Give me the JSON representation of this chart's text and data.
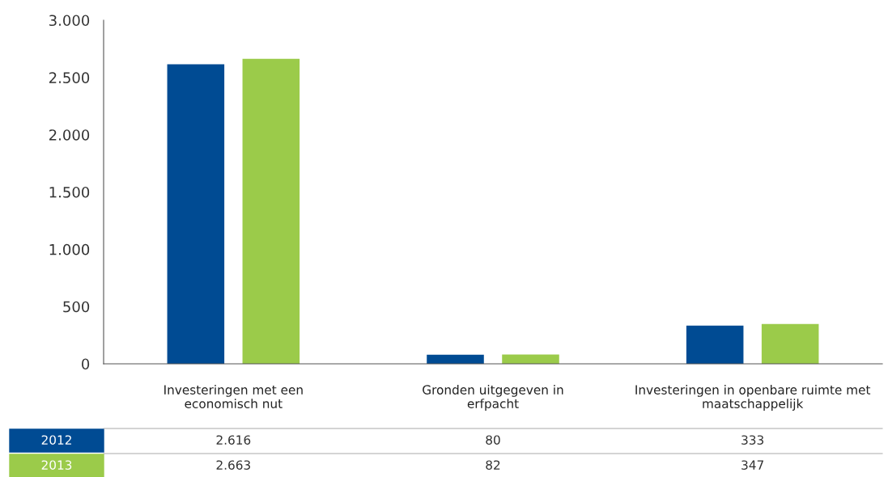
{
  "chart_data": {
    "type": "bar",
    "categories": [
      "Investeringen met een\neconomisch nut",
      "Gronden uitgegeven in\nerfpacht",
      "Investeringen in openbare ruimte met\nmaatschappelijk"
    ],
    "series": [
      {
        "name": "2012",
        "color": "#004b93",
        "values": [
          2616,
          80,
          333
        ],
        "value_labels": [
          "2.616",
          "80",
          "333"
        ]
      },
      {
        "name": "2013",
        "color": "#9bcb4a",
        "values": [
          2663,
          82,
          347
        ],
        "value_labels": [
          "2.663",
          "82",
          "347"
        ]
      }
    ],
    "ylim": [
      0,
      3000
    ],
    "yticks": [
      0,
      500,
      {
        "value": 1000,
        "label": "1.000"
      },
      {
        "value": 1500,
        "label": "1.500"
      },
      {
        "value": 2000,
        "label": "2.000"
      },
      {
        "value": 2500,
        "label": "2.500"
      },
      {
        "value": 3000,
        "label": "3.000"
      }
    ],
    "grid": false
  }
}
